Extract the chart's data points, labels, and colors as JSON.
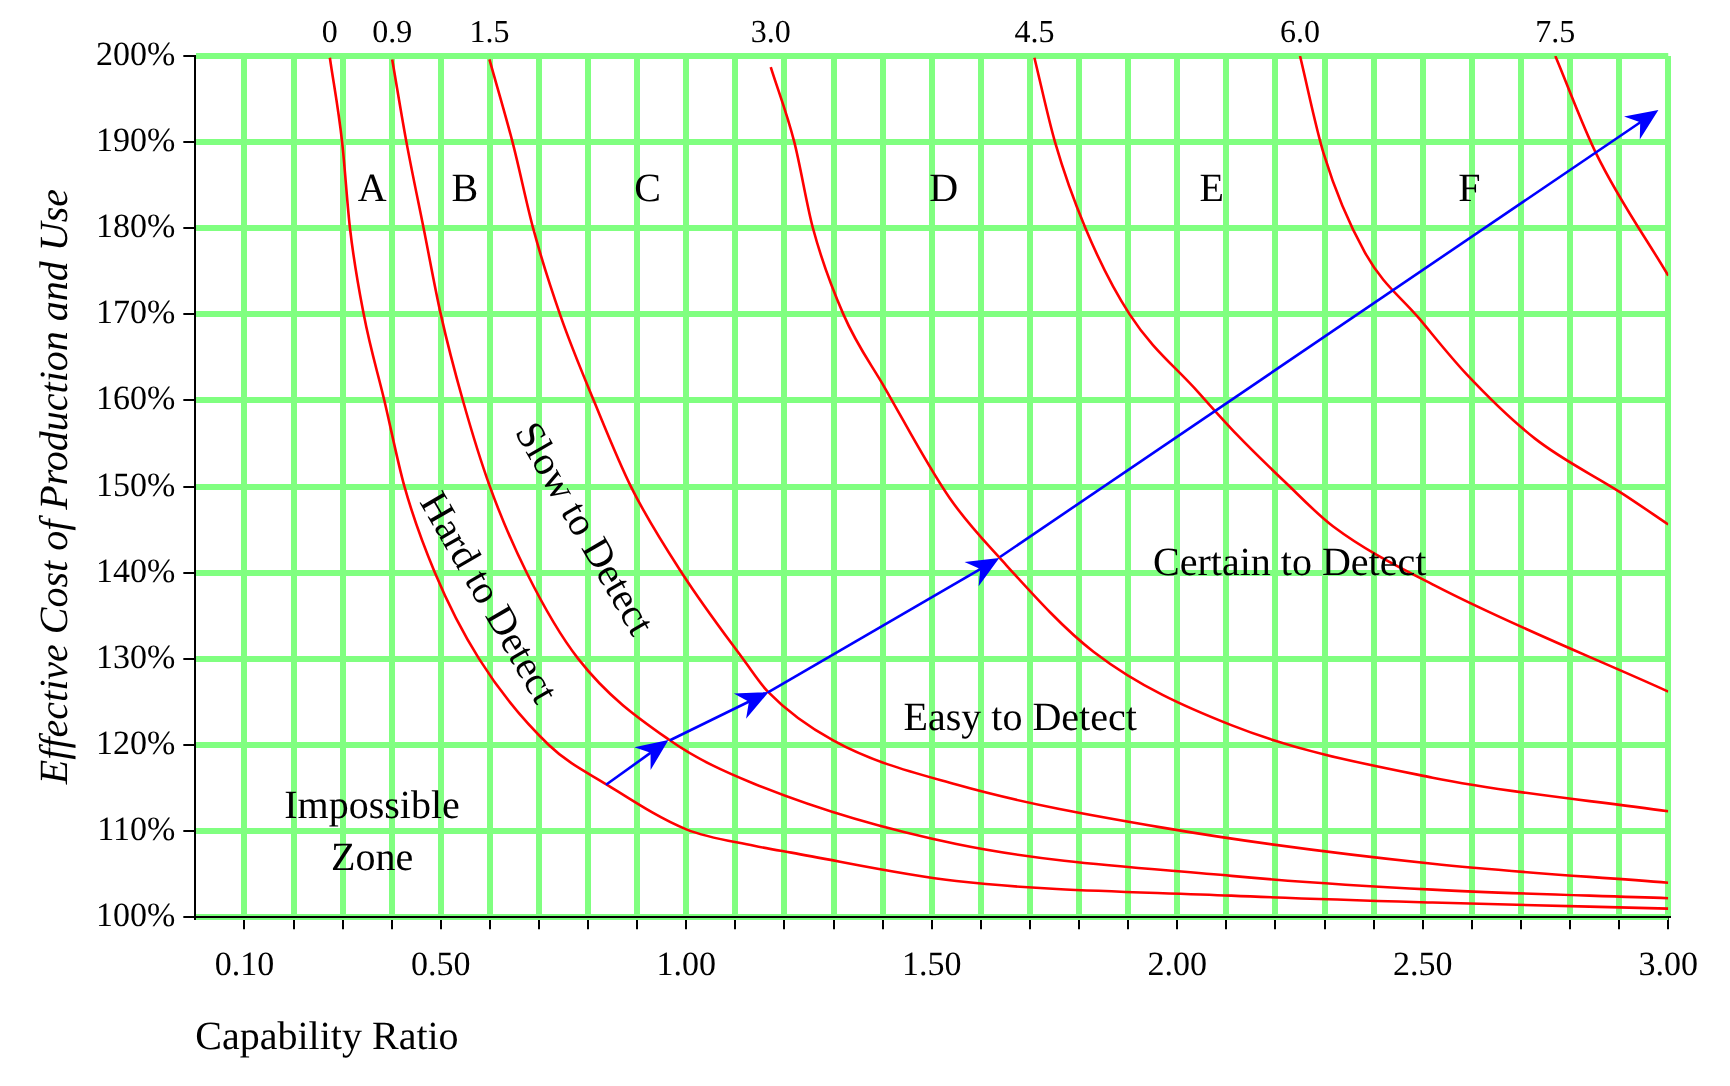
{
  "chart_data": {
    "type": "line",
    "xlabel": "Capability Ratio",
    "ylabel": "Effective Cost of Production and Use",
    "xlim": [
      0,
      3
    ],
    "ylim": [
      100,
      200
    ],
    "xticks": [
      {
        "value": 0.1,
        "label": "0.10"
      },
      {
        "value": 0.2,
        "label": null
      },
      {
        "value": 0.3,
        "label": null
      },
      {
        "value": 0.4,
        "label": null
      },
      {
        "value": 0.5,
        "label": "0.50"
      },
      {
        "value": 0.6,
        "label": null
      },
      {
        "value": 0.7,
        "label": null
      },
      {
        "value": 0.8,
        "label": null
      },
      {
        "value": 0.9,
        "label": null
      },
      {
        "value": 1.0,
        "label": "1.00"
      },
      {
        "value": 1.1,
        "label": null
      },
      {
        "value": 1.2,
        "label": null
      },
      {
        "value": 1.3,
        "label": null
      },
      {
        "value": 1.4,
        "label": null
      },
      {
        "value": 1.5,
        "label": "1.50"
      },
      {
        "value": 1.6,
        "label": null
      },
      {
        "value": 1.7,
        "label": null
      },
      {
        "value": 1.8,
        "label": null
      },
      {
        "value": 1.9,
        "label": null
      },
      {
        "value": 2.0,
        "label": "2.00"
      },
      {
        "value": 2.1,
        "label": null
      },
      {
        "value": 2.2,
        "label": null
      },
      {
        "value": 2.3,
        "label": null
      },
      {
        "value": 2.4,
        "label": null
      },
      {
        "value": 2.5,
        "label": "2.50"
      },
      {
        "value": 2.6,
        "label": null
      },
      {
        "value": 2.7,
        "label": null
      },
      {
        "value": 2.8,
        "label": null
      },
      {
        "value": 2.9,
        "label": null
      },
      {
        "value": 3.0,
        "label": "3.00"
      }
    ],
    "yticks": [
      {
        "value": 100,
        "label": "100%"
      },
      {
        "value": 110,
        "label": "110%"
      },
      {
        "value": 120,
        "label": "120%"
      },
      {
        "value": 130,
        "label": "130%"
      },
      {
        "value": 140,
        "label": "140%"
      },
      {
        "value": 150,
        "label": "150%"
      },
      {
        "value": 160,
        "label": "160%"
      },
      {
        "value": 170,
        "label": "170%"
      },
      {
        "value": 180,
        "label": "180%"
      },
      {
        "value": 190,
        "label": "190%"
      },
      {
        "value": 200,
        "label": "200%"
      }
    ],
    "grid": true,
    "legend": false,
    "marker": "none",
    "line_style": "solid",
    "series": [
      {
        "name": "0",
        "color": "#ff0000",
        "x": [
          0.274,
          0.299,
          0.315,
          0.343,
          0.385,
          0.426,
          0.488,
          0.578,
          0.72,
          0.838,
          1.0,
          1.138,
          1.214,
          1.55,
          2.11,
          2.52,
          3.0
        ],
        "values": [
          199.8,
          190,
          180,
          170,
          160,
          150,
          140,
          130,
          120,
          115.4,
          110.2,
          108.3,
          107.5,
          104.2,
          102.5,
          101.7,
          101.0
        ]
      },
      {
        "name": "0.9",
        "color": "#ff0000",
        "x": [
          0.401,
          0.43,
          0.465,
          0.5,
          0.545,
          0.6,
          0.675,
          0.78,
          0.965,
          1.138,
          1.55,
          2.11,
          2.52,
          3.0
        ],
        "values": [
          199.6,
          190,
          180,
          170,
          160,
          150,
          140,
          130,
          120.6,
          115.5,
          108.5,
          104.8,
          103.2,
          102.2
        ]
      },
      {
        "name": "1.5",
        "color": "#ff0000",
        "x": [
          0.599,
          0.647,
          0.689,
          0.744,
          0.813,
          0.889,
          0.993,
          1.118,
          1.166,
          1.3,
          1.55,
          1.97,
          2.52,
          3.0
        ],
        "values": [
          199.6,
          189.8,
          179.8,
          169.8,
          159.8,
          149.8,
          139.8,
          129.8,
          126.2,
          120.5,
          115.4,
          110.4,
          106.2,
          104.0
        ]
      },
      {
        "name": "3.0",
        "color": "#ff0000",
        "x": [
          1.172,
          1.22,
          1.258,
          1.32,
          1.404,
          1.536,
          1.637,
          1.83,
          2.11,
          2.52,
          3.0
        ],
        "values": [
          198.7,
          190,
          180,
          170,
          161.5,
          148.7,
          141.8,
          130.8,
          122.3,
          116.2,
          112.3
        ]
      },
      {
        "name": "4.5",
        "color": "#ff0000",
        "x": [
          1.709,
          1.751,
          1.813,
          1.903,
          2.042,
          2.122,
          2.22,
          2.317,
          2.525,
          3.0
        ],
        "values": [
          199.8,
          190,
          180,
          170,
          161,
          156,
          150.5,
          145.4,
          138.5,
          126.2
        ]
      },
      {
        "name": "6.0",
        "color": "#ff0000",
        "x": [
          2.25,
          2.298,
          2.382,
          2.493,
          2.59,
          2.728,
          2.909,
          3.0
        ],
        "values": [
          200,
          188.7,
          177.2,
          169.5,
          163,
          155.6,
          149.1,
          145.6
        ]
      },
      {
        "name": "7.5",
        "color": "#ff0000",
        "x": [
          2.77,
          2.853,
          3.0
        ],
        "values": [
          200,
          188.7,
          174.5
        ]
      }
    ],
    "annotations": [
      "A",
      "B",
      "C",
      "D",
      "E",
      "F",
      "Hard to Detect",
      "Slow to Detect",
      "Easy to Detect",
      "Certain to Detect",
      "Impossible\nZone"
    ]
  }
}
